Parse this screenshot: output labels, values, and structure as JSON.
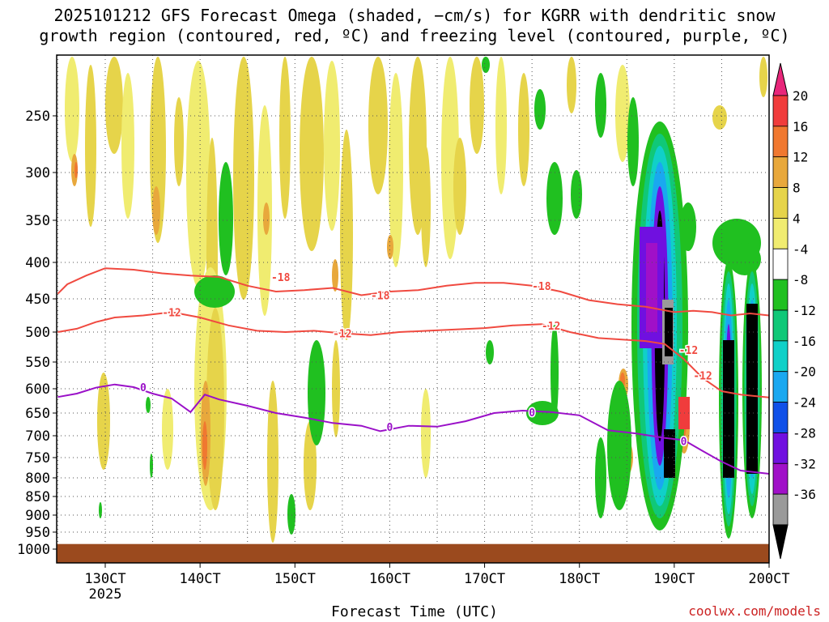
{
  "title_line1": "2025101212 GFS Forecast Omega (shaded, −cm/s) for KGRR with dendritic snow",
  "title_line2": "growth region (contoured, red, ºC) and freezing level (contoured, purple, ºC)",
  "xlabel": "Forecast Time (UTC)",
  "credit": "coolwx.com/models",
  "colors": {
    "terrain": "#9b4a1e",
    "grid": "#555555",
    "dgz_contour": "#f04a40",
    "freezing_contour": "#9a10c8"
  },
  "chart_data": {
    "type": "heatmap",
    "y_axis": {
      "quantity": "pressure (hPa)",
      "ticks": [
        250,
        300,
        350,
        400,
        450,
        500,
        550,
        600,
        650,
        700,
        750,
        800,
        850,
        900,
        950,
        1000
      ],
      "range": [
        200,
        1030
      ]
    },
    "x_axis": {
      "ticks": [
        "130CT",
        "140CT",
        "150CT",
        "160CT",
        "170CT",
        "180CT",
        "190CT",
        "200CT"
      ],
      "sub_label": "2025",
      "range_days": [
        12.5,
        20.0
      ]
    },
    "colorbar": {
      "labels": [
        "20",
        "16",
        "12",
        "8",
        "4",
        "-4",
        "-8",
        "-12",
        "-16",
        "-20",
        "-24",
        "-28",
        "-32",
        "-36"
      ],
      "colors": [
        "#e8267a",
        "#f03c3c",
        "#f07830",
        "#e8a83c",
        "#e6d44a",
        "#f0ec70",
        "#ffffff",
        "#20c020",
        "#10c878",
        "#10d0c8",
        "#1aa8f0",
        "#1050e8",
        "#7010e0",
        "#a010c8",
        "#9a9a9a",
        "#000000"
      ]
    },
    "contours": {
      "dgz": [
        {
          "label": "-18",
          "x_day": [
            12.5,
            12.6,
            12.8,
            13.0,
            13.3,
            13.6,
            13.9,
            14.2,
            14.5,
            14.8,
            15.1,
            15.4,
            15.7,
            16.0,
            16.3,
            16.6,
            16.9,
            17.2,
            17.5,
            17.8,
            18.1,
            18.4,
            18.7,
            19.0,
            19.2,
            19.4,
            19.6,
            19.8,
            20.0
          ],
          "p": [
            443,
            430,
            418,
            408,
            410,
            415,
            418,
            420,
            432,
            440,
            438,
            435,
            445,
            440,
            438,
            432,
            428,
            428,
            432,
            440,
            452,
            458,
            462,
            470,
            468,
            470,
            475,
            472,
            475
          ]
        },
        {
          "label": "-12",
          "x_day": [
            12.5,
            12.7,
            12.9,
            13.1,
            13.4,
            13.7,
            14.0,
            14.3,
            14.6,
            14.9,
            15.2,
            15.5,
            15.8,
            16.1,
            16.4,
            16.7,
            17.0,
            17.3,
            17.6,
            17.9,
            18.2,
            18.4,
            18.7,
            18.9,
            19.1,
            19.3,
            19.5,
            19.7,
            20.0
          ],
          "p": [
            500,
            495,
            485,
            478,
            475,
            470,
            478,
            490,
            498,
            500,
            498,
            502,
            505,
            500,
            498,
            496,
            494,
            490,
            488,
            500,
            510,
            512,
            515,
            520,
            545,
            580,
            605,
            612,
            618
          ]
        }
      ],
      "freezing_level": {
        "label": "0",
        "x_day": [
          12.5,
          12.7,
          12.9,
          13.1,
          13.3,
          13.5,
          13.7,
          13.9,
          14.05,
          14.2,
          14.5,
          14.8,
          15.1,
          15.4,
          15.7,
          15.9,
          16.2,
          16.5,
          16.8,
          17.1,
          17.4,
          17.7,
          18.0,
          18.3,
          18.6,
          18.9,
          19.1,
          19.3,
          19.5,
          19.7,
          20.0
        ],
        "p": [
          617,
          610,
          598,
          592,
          597,
          610,
          620,
          648,
          612,
          622,
          635,
          650,
          660,
          672,
          678,
          690,
          678,
          680,
          668,
          650,
          645,
          648,
          655,
          688,
          695,
          705,
          710,
          735,
          760,
          782,
          790
        ]
      },
      "labels_shown": [
        "-18",
        "-18",
        "-18",
        "-12",
        "-12",
        "-12",
        "-12",
        "-12",
        "0",
        "0",
        "0",
        "0"
      ]
    },
    "terrain_top_hPa": 985
  }
}
